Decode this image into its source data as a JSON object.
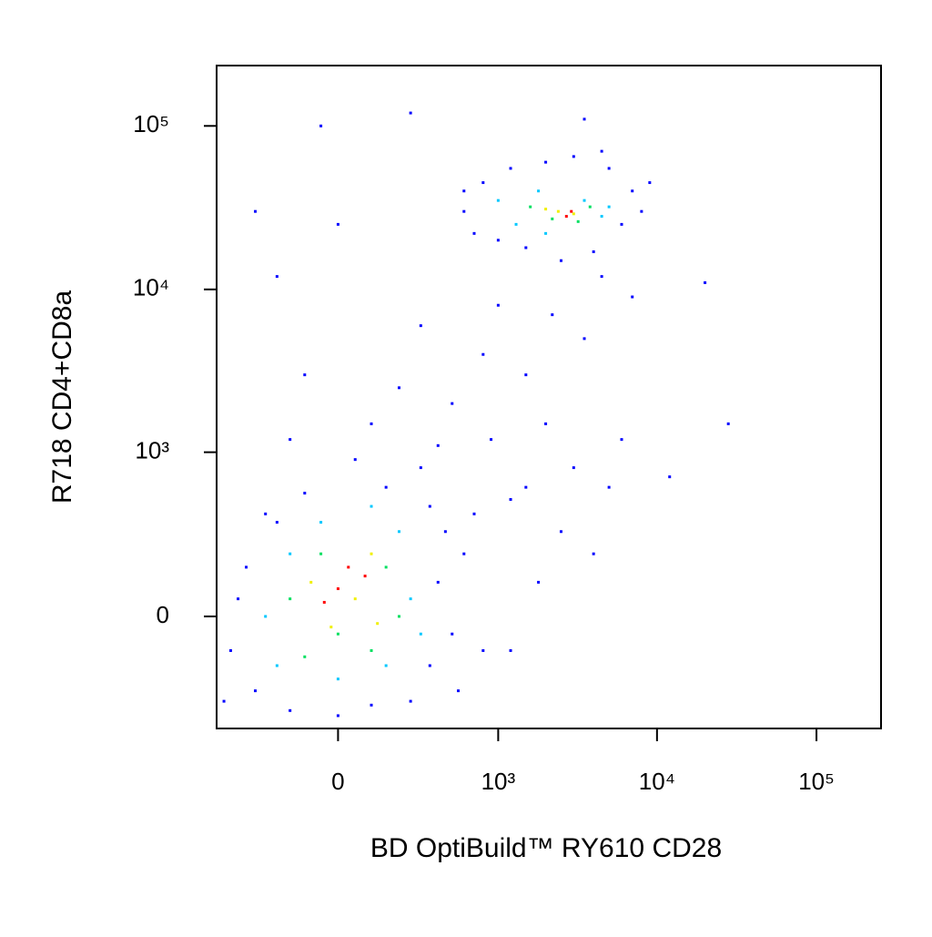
{
  "chart_data": {
    "type": "scatter",
    "x_label": "BD OptiBuild™ RY610 CD28",
    "y_label": "R718 CD4+CD8a",
    "xscale": "biexponential",
    "yscale": "biexponential",
    "xlim": [
      -560,
      254000
    ],
    "ylim": [
      -464,
      234000
    ],
    "xticks": [
      0,
      {
        "value": 1000,
        "label": "10³"
      },
      {
        "value": 10000,
        "label": "10⁴"
      },
      {
        "value": 100000,
        "label": "10⁵"
      }
    ],
    "yticks": [
      0,
      {
        "value": 1000,
        "label": "10³"
      },
      {
        "value": 10000,
        "label": "10⁴"
      },
      {
        "value": 100000,
        "label": "10⁵"
      }
    ],
    "series": [
      {
        "color": "#0000ff",
        "x": [
          -450,
          -350,
          -300,
          -200,
          -150,
          0,
          100,
          250,
          350,
          400,
          450,
          350,
          150,
          -100,
          -250,
          500,
          600,
          -400,
          300,
          50,
          -150,
          100,
          400,
          700,
          800,
          550,
          -500,
          1200,
          200,
          -100,
          500,
          800,
          300,
          1000,
          1500,
          2000,
          3000,
          2500,
          4000,
          1800,
          1200,
          5000,
          6000,
          3500,
          7000,
          4500,
          2200,
          1500,
          900,
          -200,
          -300,
          0,
          600,
          12000,
          28000,
          20000,
          -50,
          250,
          3500,
          600,
          800,
          1000,
          1200,
          1500,
          2000,
          2500,
          3000,
          4000,
          5000,
          6000,
          7000,
          8000,
          9000,
          700,
          4500
        ],
        "y": [
          -100,
          150,
          -250,
          350,
          -350,
          -380,
          -320,
          -300,
          -150,
          100,
          300,
          450,
          600,
          550,
          400,
          -50,
          200,
          50,
          800,
          900,
          1200,
          1500,
          1100,
          400,
          -100,
          -250,
          -300,
          500,
          2500,
          3000,
          2000,
          4000,
          6000,
          8000,
          3000,
          1500,
          800,
          300,
          200,
          100,
          -100,
          600,
          1200,
          5000,
          9000,
          12000,
          7000,
          600,
          1200,
          12000,
          30000,
          25000,
          40000,
          700,
          1500,
          11000,
          100000,
          120000,
          110000,
          30000,
          45000,
          20000,
          55000,
          18000,
          60000,
          15000,
          65000,
          17000,
          55000,
          25000,
          40000,
          30000,
          45000,
          22000,
          70000
        ]
      },
      {
        "color": "#00c8ff",
        "x": [
          -250,
          -150,
          0,
          150,
          250,
          200,
          -50,
          -200,
          300,
          100,
          1000,
          1300,
          1800,
          2000,
          3500,
          4500,
          5000
        ],
        "y": [
          0,
          200,
          -200,
          -150,
          50,
          300,
          350,
          -150,
          -50,
          450,
          35000,
          25000,
          40000,
          22000,
          35000,
          28000,
          32000
        ]
      },
      {
        "color": "#00e060",
        "x": [
          -150,
          -50,
          100,
          150,
          0,
          -100,
          200,
          1600,
          2200,
          3200,
          3800
        ],
        "y": [
          50,
          200,
          -100,
          150,
          -50,
          -120,
          0,
          32000,
          27000,
          26000,
          32000
        ]
      },
      {
        "color": "#f0f000",
        "x": [
          -80,
          50,
          100,
          -20,
          120,
          2400,
          3000,
          2000
        ],
        "y": [
          100,
          50,
          200,
          -30,
          -20,
          30000,
          29000,
          31000
        ]
      },
      {
        "color": "#ff0000",
        "x": [
          0,
          30,
          -40,
          80,
          2700,
          2900
        ],
        "y": [
          80,
          150,
          40,
          120,
          28000,
          30000
        ]
      }
    ]
  }
}
